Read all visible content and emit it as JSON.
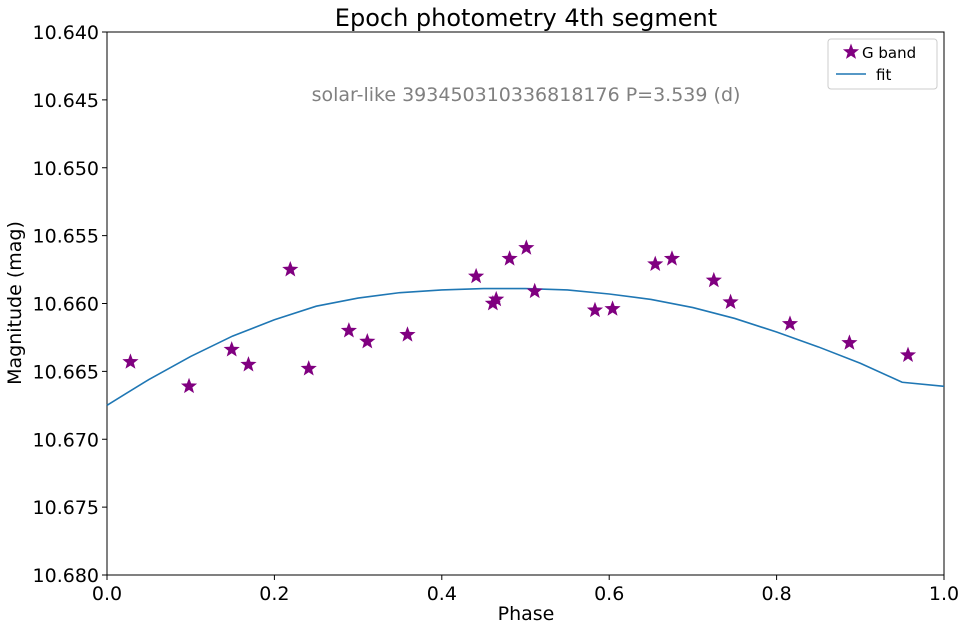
{
  "chart_data": {
    "type": "scatter",
    "title": "Epoch photometry 4th segment",
    "xlabel": "Phase",
    "ylabel": "Magnitude (mag)",
    "xlim": [
      0.0,
      1.0
    ],
    "ylim": [
      10.68,
      10.64
    ],
    "y_inverted": true,
    "grid": false,
    "legend_position": "top-right",
    "x_ticks": [
      "0.0",
      "0.2",
      "0.4",
      "0.6",
      "0.8",
      "1.0"
    ],
    "x_tick_values": [
      0.0,
      0.2,
      0.4,
      0.6,
      0.8,
      1.0
    ],
    "y_ticks": [
      "10.640",
      "10.645",
      "10.650",
      "10.655",
      "10.660",
      "10.665",
      "10.670",
      "10.675",
      "10.680"
    ],
    "y_tick_values": [
      10.64,
      10.645,
      10.65,
      10.655,
      10.66,
      10.665,
      10.67,
      10.675,
      10.68
    ],
    "annotation": "solar-like 393450310336818176 P=3.539 (d)",
    "series": [
      {
        "name": "G band",
        "kind": "scatter",
        "marker": "star",
        "color": "#800080",
        "points": [
          [
            0.028,
            10.6643
          ],
          [
            0.098,
            10.6661
          ],
          [
            0.149,
            10.6634
          ],
          [
            0.169,
            10.6645
          ],
          [
            0.219,
            10.6575
          ],
          [
            0.241,
            10.6648
          ],
          [
            0.289,
            10.662
          ],
          [
            0.311,
            10.6628
          ],
          [
            0.359,
            10.6623
          ],
          [
            0.441,
            10.658
          ],
          [
            0.461,
            10.66
          ],
          [
            0.465,
            10.6597
          ],
          [
            0.481,
            10.6567
          ],
          [
            0.501,
            10.6559
          ],
          [
            0.511,
            10.6591
          ],
          [
            0.583,
            10.6605
          ],
          [
            0.604,
            10.6604
          ],
          [
            0.655,
            10.6571
          ],
          [
            0.675,
            10.6567
          ],
          [
            0.725,
            10.6583
          ],
          [
            0.745,
            10.6599
          ],
          [
            0.816,
            10.6615
          ],
          [
            0.887,
            10.6629
          ],
          [
            0.957,
            10.6638
          ]
        ]
      },
      {
        "name": "fit",
        "kind": "line",
        "color": "#1f77b4",
        "points": [
          [
            0.0,
            10.6675
          ],
          [
            0.05,
            10.6656
          ],
          [
            0.1,
            10.6639
          ],
          [
            0.15,
            10.6624
          ],
          [
            0.2,
            10.6612
          ],
          [
            0.25,
            10.6602
          ],
          [
            0.3,
            10.6596
          ],
          [
            0.35,
            10.6592
          ],
          [
            0.4,
            10.659
          ],
          [
            0.45,
            10.6589
          ],
          [
            0.5,
            10.6589
          ],
          [
            0.55,
            10.659
          ],
          [
            0.6,
            10.6593
          ],
          [
            0.65,
            10.6597
          ],
          [
            0.7,
            10.6603
          ],
          [
            0.75,
            10.6611
          ],
          [
            0.8,
            10.6621
          ],
          [
            0.85,
            10.6632
          ],
          [
            0.9,
            10.6644
          ],
          [
            0.95,
            10.6658
          ],
          [
            1.0,
            10.6661
          ]
        ]
      }
    ]
  }
}
